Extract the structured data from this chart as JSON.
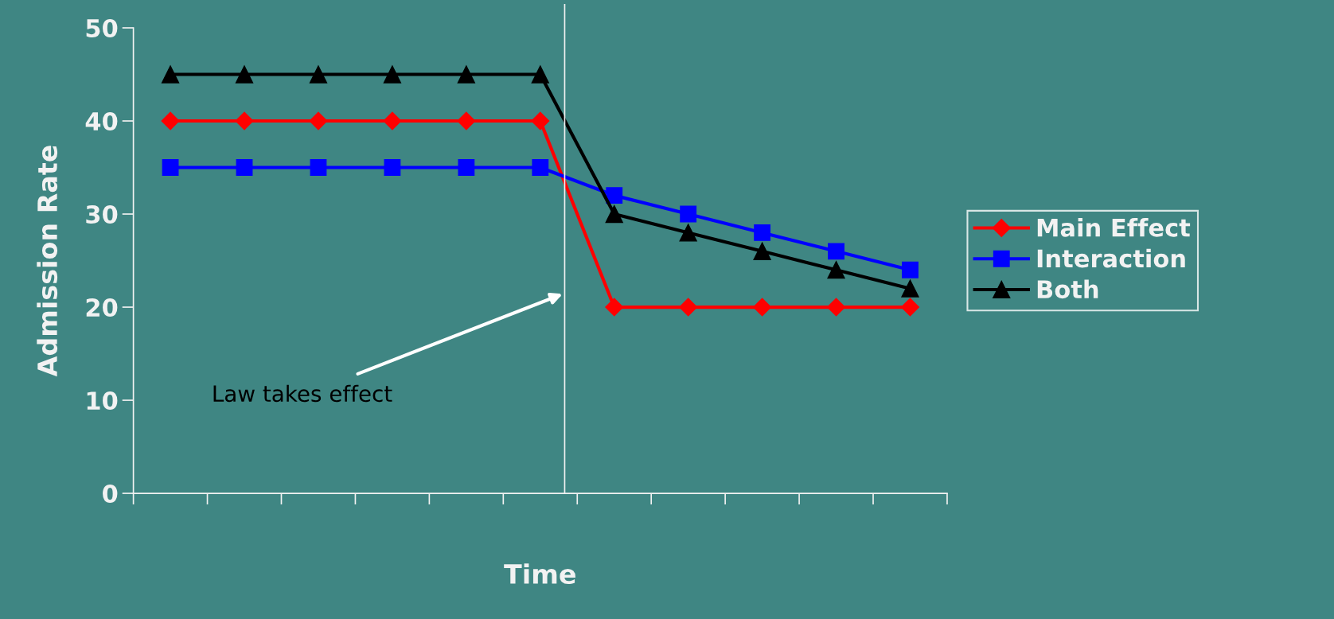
{
  "chart_data": {
    "type": "line",
    "xlabel": "Time",
    "ylabel": "Admission Rate",
    "categories": [
      null,
      null,
      null,
      null,
      null,
      null,
      null,
      null,
      null,
      null,
      null
    ],
    "ylim": [
      0,
      50
    ],
    "yticks": [
      0,
      10,
      20,
      30,
      40,
      50
    ],
    "series": [
      {
        "name": "Main Effect",
        "color": "#ff0000",
        "marker": "diamond",
        "values": [
          40,
          40,
          40,
          40,
          40,
          40,
          20,
          20,
          20,
          20,
          20
        ]
      },
      {
        "name": "Interaction",
        "color": "#0000ff",
        "marker": "square",
        "values": [
          35,
          35,
          35,
          35,
          35,
          35,
          32,
          30,
          28,
          26,
          24
        ]
      },
      {
        "name": "Both",
        "color": "#000000",
        "marker": "triangle",
        "values": [
          45,
          45,
          45,
          45,
          45,
          45,
          30,
          28,
          26,
          24,
          22
        ]
      }
    ],
    "annotations": [
      "Law takes effect"
    ],
    "line_style": "solid",
    "grid": false,
    "legend": "right"
  }
}
